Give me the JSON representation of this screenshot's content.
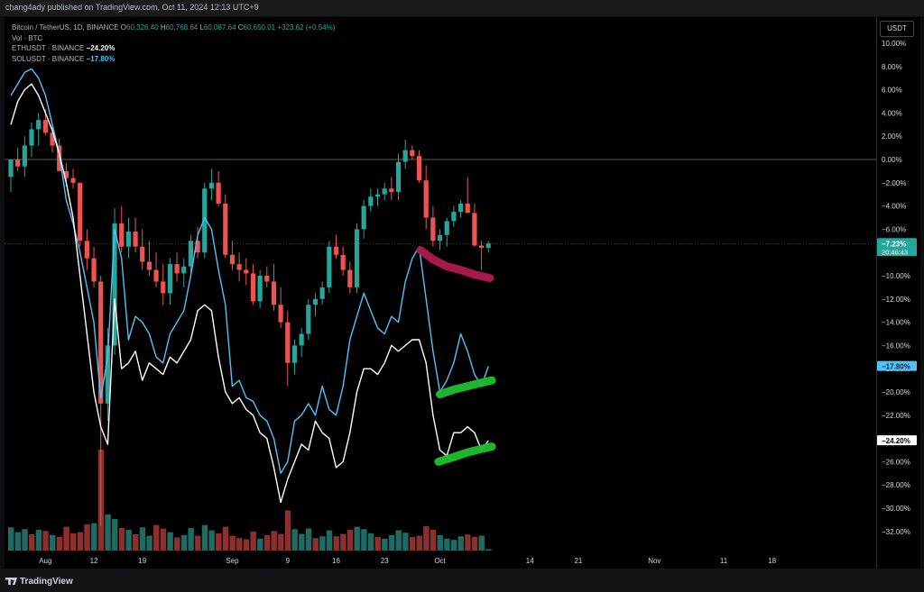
{
  "publisher": "chang4ady published on TradingView.com, Oct 11, 2024 12:13 UTC+9",
  "legend": {
    "symbol_title": "Bitcoin / TetherUS, 1D, BINANCE",
    "ohlc": [
      {
        "label": "O",
        "value": "60,326.40"
      },
      {
        "label": "H",
        "value": "60,768.64"
      },
      {
        "label": "L",
        "value": "60,087.64"
      },
      {
        "label": "C",
        "value": "60,650.01"
      }
    ],
    "change": "+323.62 (+0.54%)",
    "volume_label": "Vol · BTC",
    "eth_label": "ETHUSDT · BINANCE",
    "eth_value": "−24.20%",
    "sol_label": "SOLUSDT · BINANCE",
    "sol_value": "−17.80%"
  },
  "unit_button": "USDT",
  "footer_logo": "TradingView",
  "colors": {
    "up": "#26a69a",
    "down": "#ef5350",
    "vol_up": "#1f6b63",
    "vol_down": "#8e2f2e",
    "eth": "#ffffff",
    "sol": "#4fc3f7",
    "btc_label": "#26a69a",
    "annotation_red": "#b0194f",
    "annotation_green": "#1fbf2e"
  },
  "chart_data": {
    "type": "line",
    "percent_ticks": [
      10,
      8,
      6,
      4,
      2,
      0,
      -2,
      -4,
      -6,
      -10,
      -12,
      -14,
      -16,
      -18,
      -20,
      -22,
      -26,
      -28,
      -30,
      -32
    ],
    "tick_labels": [
      "10.00%",
      "8.00%",
      "6.00%",
      "4.00%",
      "2.00%",
      "0.00%",
      "−2.00%",
      "−4.00%",
      "−6.00%",
      "−10.00%",
      "−12.00%",
      "−14.00%",
      "−16.00%",
      "−18.00%",
      "−20.00%",
      "−22.00%",
      "−26.00%",
      "−28.00%",
      "−30.00%",
      "−32.00%"
    ],
    "ylim": [
      -33,
      11
    ],
    "x_labels": [
      {
        "label": "Aug",
        "day": 5
      },
      {
        "label": "12",
        "day": 12
      },
      {
        "label": "19",
        "day": 19
      },
      {
        "label": "Sep",
        "day": 32
      },
      {
        "label": "9",
        "day": 40
      },
      {
        "label": "16",
        "day": 47
      },
      {
        "label": "23",
        "day": 54
      },
      {
        "label": "Oct",
        "day": 62
      },
      {
        "label": "14",
        "day": 75
      },
      {
        "label": "21",
        "day": 82
      },
      {
        "label": "Nov",
        "day": 93
      },
      {
        "label": "11",
        "day": 103
      },
      {
        "label": "18",
        "day": 110
      }
    ],
    "btc_last_label": "−7.23%",
    "btc_countdown": "20:46:43",
    "sol_last_label": "−17.80%",
    "eth_last_label": "−24.20%",
    "btc_candles_pct": [
      [
        -1.5,
        -0.5,
        -2.8,
        0.0
      ],
      [
        0.0,
        1.0,
        -1.0,
        -0.6
      ],
      [
        -0.6,
        2.0,
        -1.5,
        1.2
      ],
      [
        1.2,
        3.2,
        0.2,
        2.6
      ],
      [
        2.6,
        4.0,
        1.2,
        3.4
      ],
      [
        3.4,
        4.3,
        2.1,
        2.3
      ],
      [
        2.3,
        3.0,
        0.6,
        1.2
      ],
      [
        1.2,
        1.8,
        -0.8,
        -1.0
      ],
      [
        -1.0,
        -0.3,
        -2.3,
        -1.6
      ],
      [
        -1.6,
        -0.8,
        -2.5,
        -2.0
      ],
      [
        -2.0,
        -5.0,
        -7.5,
        -7.0
      ],
      [
        -7.0,
        -6.0,
        -9.5,
        -8.5
      ],
      [
        -8.5,
        -7.5,
        -11.0,
        -10.5
      ],
      [
        -10.5,
        -10.0,
        -31.5,
        -21.0
      ],
      [
        -21.0,
        -14.5,
        -22.5,
        -16.0
      ],
      [
        -16.0,
        -4.2,
        -16.8,
        -5.5
      ],
      [
        -5.5,
        -4.0,
        -8.0,
        -7.5
      ],
      [
        -7.5,
        -5.0,
        -8.5,
        -6.2
      ],
      [
        -6.2,
        -5.0,
        -8.0,
        -7.5
      ],
      [
        -7.5,
        -6.0,
        -9.5,
        -8.8
      ],
      [
        -8.8,
        -7.0,
        -10.0,
        -9.5
      ],
      [
        -9.5,
        -8.0,
        -11.0,
        -10.5
      ],
      [
        -10.5,
        -9.0,
        -12.5,
        -11.5
      ],
      [
        -11.5,
        -8.5,
        -12.5,
        -9.0
      ],
      [
        -9.0,
        -8.0,
        -10.5,
        -9.8
      ],
      [
        -9.8,
        -8.5,
        -11.0,
        -9.2
      ],
      [
        -9.2,
        -6.5,
        -9.8,
        -7.0
      ],
      [
        -7.0,
        -5.8,
        -8.5,
        -8.0
      ],
      [
        -8.0,
        -2.0,
        -8.5,
        -2.5
      ],
      [
        -2.5,
        -0.8,
        -3.5,
        -2.0
      ],
      [
        -2.0,
        -1.0,
        -4.0,
        -3.8
      ],
      [
        -3.8,
        -3.0,
        -8.5,
        -8.2
      ],
      [
        -8.2,
        -7.0,
        -9.5,
        -9.0
      ],
      [
        -9.0,
        -8.0,
        -10.5,
        -9.5
      ],
      [
        -9.5,
        -8.5,
        -10.8,
        -9.8
      ],
      [
        -9.8,
        -9.0,
        -12.5,
        -12.2
      ],
      [
        -12.2,
        -9.5,
        -12.8,
        -10.0
      ],
      [
        -10.0,
        -9.2,
        -11.0,
        -10.5
      ],
      [
        -10.5,
        -9.0,
        -13.0,
        -12.5
      ],
      [
        -12.5,
        -11.0,
        -14.5,
        -14.0
      ],
      [
        -14.0,
        -13.0,
        -19.5,
        -17.5
      ],
      [
        -17.5,
        -15.5,
        -18.5,
        -16.0
      ],
      [
        -16.0,
        -14.5,
        -17.0,
        -15.0
      ],
      [
        -15.0,
        -12.0,
        -15.5,
        -12.5
      ],
      [
        -12.5,
        -11.5,
        -13.5,
        -12.0
      ],
      [
        -12.0,
        -10.5,
        -12.5,
        -11.0
      ],
      [
        -11.0,
        -7.0,
        -11.5,
        -7.5
      ],
      [
        -7.5,
        -6.5,
        -8.5,
        -8.2
      ],
      [
        -8.2,
        -7.5,
        -10.0,
        -9.5
      ],
      [
        -9.5,
        -8.8,
        -11.5,
        -11.0
      ],
      [
        -11.0,
        -5.5,
        -11.5,
        -6.0
      ],
      [
        -6.0,
        -3.5,
        -6.8,
        -4.0
      ],
      [
        -4.0,
        -2.5,
        -4.5,
        -3.2
      ],
      [
        -3.2,
        -2.5,
        -4.0,
        -3.0
      ],
      [
        -3.0,
        -2.0,
        -3.5,
        -2.5
      ],
      [
        -2.5,
        -1.5,
        -3.5,
        -2.8
      ],
      [
        -2.8,
        0.5,
        -3.5,
        -0.2
      ],
      [
        -0.2,
        1.7,
        -0.8,
        0.8
      ],
      [
        0.8,
        1.2,
        0.0,
        0.3
      ],
      [
        0.3,
        0.8,
        -2.0,
        -1.8
      ],
      [
        -1.8,
        -0.5,
        -6.0,
        -5.0
      ],
      [
        -5.0,
        -4.0,
        -7.5,
        -7.0
      ],
      [
        -7.0,
        -6.0,
        -7.8,
        -6.5
      ],
      [
        -6.5,
        -5.0,
        -7.5,
        -5.3
      ],
      [
        -5.3,
        -4.0,
        -5.8,
        -4.5
      ],
      [
        -4.5,
        -3.5,
        -5.0,
        -3.8
      ],
      [
        -3.8,
        -1.5,
        -4.5,
        -4.6
      ],
      [
        -4.6,
        -3.8,
        -7.5,
        -7.4
      ],
      [
        -7.4,
        -7.0,
        -9.5,
        -7.6
      ],
      [
        -7.6,
        -7.0,
        -8.0,
        -7.23
      ]
    ],
    "volume": [
      [
        0.78,
        1
      ],
      [
        0.62,
        1
      ],
      [
        0.72,
        1
      ],
      [
        0.55,
        0
      ],
      [
        0.7,
        1
      ],
      [
        0.66,
        0
      ],
      [
        0.52,
        1
      ],
      [
        0.46,
        0
      ],
      [
        0.8,
        0
      ],
      [
        0.58,
        0
      ],
      [
        0.62,
        0
      ],
      [
        0.88,
        0
      ],
      [
        0.92,
        1
      ],
      [
        3.4,
        0
      ],
      [
        1.22,
        1
      ],
      [
        1.06,
        1
      ],
      [
        0.76,
        0
      ],
      [
        0.7,
        1
      ],
      [
        0.55,
        0
      ],
      [
        0.78,
        1
      ],
      [
        0.5,
        1
      ],
      [
        0.86,
        0
      ],
      [
        0.74,
        0
      ],
      [
        0.62,
        1
      ],
      [
        0.44,
        0
      ],
      [
        0.52,
        1
      ],
      [
        0.76,
        1
      ],
      [
        0.5,
        0
      ],
      [
        0.86,
        1
      ],
      [
        0.68,
        1
      ],
      [
        0.58,
        0
      ],
      [
        0.8,
        0
      ],
      [
        0.5,
        0
      ],
      [
        0.42,
        0
      ],
      [
        0.38,
        0
      ],
      [
        0.64,
        0
      ],
      [
        0.4,
        1
      ],
      [
        0.52,
        0
      ],
      [
        0.66,
        0
      ],
      [
        0.56,
        0
      ],
      [
        1.35,
        0
      ],
      [
        0.72,
        1
      ],
      [
        0.56,
        1
      ],
      [
        0.74,
        1
      ],
      [
        0.42,
        0
      ],
      [
        0.48,
        1
      ],
      [
        0.68,
        1
      ],
      [
        0.48,
        0
      ],
      [
        0.56,
        0
      ],
      [
        0.7,
        0
      ],
      [
        0.8,
        1
      ],
      [
        0.72,
        1
      ],
      [
        0.58,
        1
      ],
      [
        0.46,
        0
      ],
      [
        0.4,
        1
      ],
      [
        0.52,
        1
      ],
      [
        0.68,
        1
      ],
      [
        0.6,
        1
      ],
      [
        0.46,
        0
      ],
      [
        0.5,
        0
      ],
      [
        0.82,
        0
      ],
      [
        0.7,
        0
      ],
      [
        0.52,
        1
      ],
      [
        0.4,
        1
      ],
      [
        0.36,
        1
      ],
      [
        0.48,
        1
      ],
      [
        0.54,
        0
      ],
      [
        0.46,
        0
      ],
      [
        0.5,
        1
      ],
      [
        0.05,
        1
      ]
    ],
    "sol_pct": [
      5.5,
      6.5,
      7.5,
      7.8,
      7.0,
      5.5,
      3.0,
      0.5,
      -3.5,
      -5.5,
      -8.0,
      -11.0,
      -14.0,
      -20.5,
      -17.0,
      -6.0,
      -8.5,
      -15.5,
      -13.5,
      -14.0,
      -15.0,
      -17.0,
      -17.5,
      -15.0,
      -14.0,
      -13.0,
      -10.0,
      -6.5,
      -5.0,
      -6.0,
      -9.5,
      -12.5,
      -19.5,
      -19.0,
      -20.5,
      -20.8,
      -22.0,
      -22.5,
      -24.0,
      -27.0,
      -26.0,
      -22.5,
      -22.0,
      -21.0,
      -22.0,
      -19.5,
      -21.5,
      -22.0,
      -19.5,
      -15.5,
      -13.5,
      -11.5,
      -13.0,
      -14.5,
      -15.0,
      -13.5,
      -14.0,
      -10.5,
      -8.5,
      -7.5,
      -12.0,
      -16.5,
      -20.0,
      -19.0,
      -17.5,
      -15.0,
      -16.5,
      -18.5,
      -19.5,
      -17.8
    ],
    "eth_pct": [
      3.0,
      5.0,
      6.0,
      6.5,
      5.5,
      4.0,
      2.5,
      0.5,
      -2.0,
      -5.0,
      -10.0,
      -15.0,
      -20.0,
      -23.0,
      -24.5,
      -12.0,
      -18.0,
      -17.5,
      -16.5,
      -19.0,
      -17.5,
      -18.0,
      -18.5,
      -17.0,
      -17.5,
      -16.5,
      -15.5,
      -13.0,
      -12.5,
      -13.0,
      -17.0,
      -20.0,
      -21.0,
      -20.5,
      -21.5,
      -22.0,
      -23.5,
      -24.0,
      -26.5,
      -29.5,
      -27.5,
      -26.0,
      -24.5,
      -25.0,
      -22.5,
      -23.5,
      -24.0,
      -26.5,
      -26.0,
      -23.5,
      -20.0,
      -18.0,
      -18.0,
      -18.5,
      -17.5,
      -16.0,
      -16.5,
      -16.0,
      -15.5,
      -15.5,
      -17.5,
      -22.0,
      -25.0,
      -25.5,
      -23.5,
      -23.5,
      -23.0,
      -23.5,
      -25.0,
      -24.2
    ]
  }
}
